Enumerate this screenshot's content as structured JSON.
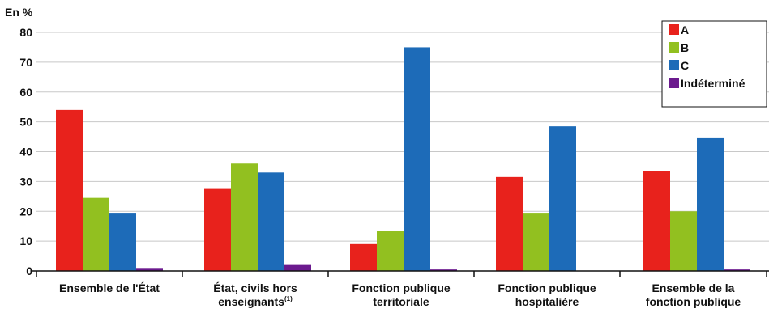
{
  "chart_data": {
    "type": "bar",
    "unit_label": "En %",
    "categories": [
      [
        "Ensemble de l'État"
      ],
      [
        "État, civils hors",
        "enseignants"
      ],
      [
        "Fonction publique",
        "territoriale"
      ],
      [
        "Fonction publique",
        "hospitalière"
      ],
      [
        "Ensemble de la",
        "fonction publique"
      ]
    ],
    "footnote_mark": "(1)",
    "series": [
      {
        "name": "A",
        "color": "#e8221c",
        "values": [
          54,
          27.5,
          9,
          31.5,
          33.5
        ]
      },
      {
        "name": "B",
        "color": "#92c020",
        "values": [
          24.5,
          36,
          13.5,
          19.5,
          20
        ]
      },
      {
        "name": "C",
        "color": "#1d6bb8",
        "values": [
          19.5,
          33,
          75,
          48.5,
          44.5
        ]
      },
      {
        "name": "Indéterminé",
        "color": "#6b1a8e",
        "values": [
          1,
          2,
          0.5,
          0,
          0.5
        ]
      }
    ],
    "ylim": [
      0,
      80
    ],
    "yticks": [
      0,
      10,
      20,
      30,
      40,
      50,
      60,
      70,
      80
    ],
    "grid": true,
    "legend_position": "top-right"
  }
}
